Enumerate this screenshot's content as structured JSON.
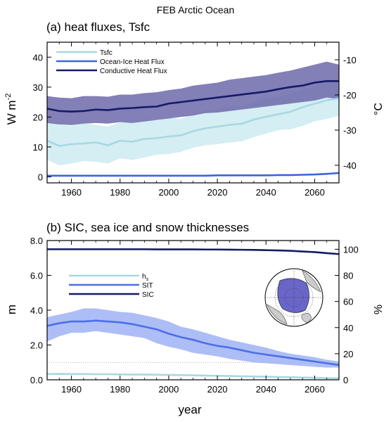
{
  "figure_title": "FEB Arctic Ocean",
  "colors": {
    "tsfc": "#a8d8e2",
    "tsfc_band": "#cdebf1",
    "ocean_ice": "#3c63e0",
    "conductive": "#141a66",
    "conductive_band": "#6d69aa",
    "hs": "#a8d8e2",
    "sit": "#4b6fe6",
    "sit_band": "#9fb2f4",
    "sic": "#141a66"
  },
  "chart_data": [
    {
      "type": "line",
      "panel_title": "(a) heat fluxes, Tsfc",
      "xlabel": "",
      "ylabel_left": "W m",
      "ylabel_left_sup": "-2",
      "ylabel_right": "°C",
      "xlim": [
        1950,
        2070
      ],
      "ylim_left": [
        -2,
        45
      ],
      "ylim_right": [
        -45,
        -5
      ],
      "x_ticks": [
        1960,
        1980,
        2000,
        2020,
        2040,
        2060
      ],
      "x_tick_labels": [
        "1960",
        "1980",
        "2000",
        "2020",
        "2040",
        "2060"
      ],
      "yleft_ticks": [
        0,
        10,
        20,
        30,
        40
      ],
      "yleft_tick_labels": [
        "0",
        "10",
        "20",
        "30",
        "40"
      ],
      "yright_ticks": [
        -40,
        -30,
        -20,
        -10
      ],
      "yright_tick_labels": [
        "-40",
        "-30",
        "-20",
        "-10"
      ],
      "legend": {
        "placement": "top-left",
        "entries": [
          "Tsfc",
          "Ocean-Ice Heat Flux",
          "Conductive Heat Flux"
        ]
      },
      "x": [
        1950,
        1955,
        1960,
        1965,
        1970,
        1975,
        1980,
        1985,
        1990,
        1995,
        2000,
        2005,
        2010,
        2015,
        2020,
        2025,
        2030,
        2035,
        2040,
        2045,
        2050,
        2055,
        2060,
        2065,
        2070
      ],
      "series": [
        {
          "name": "Tsfc",
          "axis": "right",
          "color_key": "tsfc",
          "band_key": "tsfc_band",
          "values": [
            -33.0,
            -34.5,
            -34.0,
            -33.8,
            -33.5,
            -34.3,
            -33.0,
            -33.3,
            -32.5,
            -32.3,
            -31.8,
            -31.5,
            -30.3,
            -29.5,
            -29.0,
            -28.5,
            -28.2,
            -27.0,
            -26.2,
            -25.5,
            -24.8,
            -23.5,
            -22.5,
            -21.5,
            -21.0
          ],
          "lower": [
            -38.5,
            -40.0,
            -39.5,
            -38.8,
            -39.0,
            -39.5,
            -38.0,
            -38.5,
            -37.8,
            -37.0,
            -36.8,
            -36.2,
            -35.0,
            -34.3,
            -34.0,
            -33.5,
            -33.2,
            -32.0,
            -31.0,
            -30.0,
            -29.8,
            -28.8,
            -27.5,
            -26.8,
            -26.0
          ],
          "upper": [
            -27.5,
            -28.5,
            -28.8,
            -28.0,
            -28.5,
            -29.0,
            -27.8,
            -27.5,
            -27.0,
            -27.3,
            -26.5,
            -26.8,
            -25.5,
            -24.5,
            -24.0,
            -23.5,
            -23.3,
            -22.2,
            -21.0,
            -20.5,
            -19.5,
            -18.5,
            -17.5,
            -16.3,
            -16.0
          ]
        },
        {
          "name": "Ocean-Ice Heat Flux",
          "axis": "left",
          "color_key": "ocean_ice",
          "band_key": "",
          "values": [
            0.4,
            0.4,
            0.4,
            0.4,
            0.4,
            0.4,
            0.4,
            0.4,
            0.4,
            0.4,
            0.4,
            0.4,
            0.4,
            0.4,
            0.5,
            0.5,
            0.5,
            0.5,
            0.5,
            0.6,
            0.6,
            0.7,
            0.8,
            1.0,
            1.3
          ],
          "lower": [],
          "upper": []
        },
        {
          "name": "Conductive Heat Flux",
          "axis": "left",
          "color_key": "conductive",
          "band_key": "conductive_band",
          "values": [
            22.8,
            22.0,
            21.8,
            22.0,
            22.5,
            22.3,
            22.8,
            23.0,
            23.3,
            23.5,
            24.5,
            25.0,
            25.5,
            26.0,
            26.5,
            27.0,
            27.5,
            28.0,
            28.5,
            29.3,
            30.0,
            30.5,
            31.5,
            32.0,
            32.0
          ],
          "lower": [
            18.0,
            17.5,
            17.3,
            17.8,
            18.0,
            17.8,
            18.3,
            18.0,
            18.5,
            19.0,
            19.5,
            20.0,
            20.5,
            21.3,
            21.5,
            22.0,
            22.5,
            23.0,
            23.5,
            24.0,
            24.5,
            25.0,
            25.5,
            26.5,
            26.0
          ],
          "upper": [
            27.0,
            26.5,
            26.3,
            27.0,
            27.0,
            26.8,
            27.5,
            27.5,
            28.0,
            28.3,
            29.0,
            29.5,
            30.5,
            31.0,
            31.5,
            32.5,
            33.0,
            33.5,
            34.0,
            34.8,
            35.5,
            36.5,
            37.5,
            38.5,
            37.5
          ]
        }
      ]
    },
    {
      "type": "line",
      "panel_title": "(b) SIC, sea ice and snow thicknesses",
      "xlabel": "year",
      "ylabel_left": "m",
      "ylabel_right": "%",
      "xlim": [
        1950,
        2070
      ],
      "ylim_left": [
        0,
        8
      ],
      "ylim_right": [
        0,
        106.67
      ],
      "x_ticks": [
        1960,
        1980,
        2000,
        2020,
        2040,
        2060
      ],
      "x_tick_labels": [
        "1960",
        "1980",
        "2000",
        "2020",
        "2040",
        "2060"
      ],
      "yleft_ticks": [
        0,
        2,
        4,
        6,
        8
      ],
      "yleft_tick_labels": [
        "0.0",
        "2.0",
        "4.0",
        "6.0",
        "8.0"
      ],
      "yright_ticks": [
        0,
        20,
        40,
        60,
        80,
        100
      ],
      "yright_tick_labels": [
        "0",
        "20",
        "40",
        "60",
        "80",
        "100"
      ],
      "reference_line": {
        "axis": "left",
        "value": 1.0
      },
      "legend": {
        "placement": "middle-left",
        "entries": [
          "h",
          "SIT",
          "SIC"
        ],
        "entry_subscripts": [
          "s",
          "",
          ""
        ]
      },
      "inset_map": {
        "placement": "right-center",
        "kind": "arctic polar projection"
      },
      "x": [
        1950,
        1955,
        1960,
        1965,
        1970,
        1975,
        1980,
        1985,
        1990,
        1995,
        2000,
        2005,
        2010,
        2015,
        2020,
        2025,
        2030,
        2035,
        2040,
        2045,
        2050,
        2055,
        2060,
        2065,
        2070
      ],
      "series": [
        {
          "name": "h_s",
          "axis": "left",
          "color_key": "hs",
          "band_key": "",
          "values": [
            0.33,
            0.34,
            0.33,
            0.33,
            0.32,
            0.32,
            0.31,
            0.3,
            0.3,
            0.29,
            0.28,
            0.27,
            0.26,
            0.24,
            0.23,
            0.22,
            0.2,
            0.19,
            0.18,
            0.16,
            0.15,
            0.13,
            0.12,
            0.1,
            0.09
          ],
          "lower": [],
          "upper": []
        },
        {
          "name": "SIT",
          "axis": "left",
          "color_key": "sit",
          "band_key": "sit_band",
          "values": [
            3.1,
            3.25,
            3.35,
            3.35,
            3.4,
            3.35,
            3.3,
            3.2,
            3.05,
            2.9,
            2.65,
            2.45,
            2.3,
            2.1,
            1.95,
            1.85,
            1.7,
            1.55,
            1.45,
            1.35,
            1.25,
            1.15,
            1.05,
            0.95,
            0.85
          ],
          "lower": [
            2.2,
            2.5,
            2.7,
            2.7,
            2.8,
            2.7,
            2.6,
            2.5,
            2.4,
            2.1,
            1.9,
            1.75,
            1.55,
            1.45,
            1.35,
            1.2,
            1.1,
            1.0,
            0.95,
            0.9,
            0.85,
            0.8,
            0.75,
            0.7,
            0.7
          ],
          "upper": [
            3.6,
            3.75,
            3.9,
            4.1,
            4.1,
            4.0,
            3.9,
            3.85,
            3.7,
            3.55,
            3.35,
            3.05,
            2.9,
            2.7,
            2.5,
            2.3,
            2.15,
            2.0,
            1.85,
            1.65,
            1.5,
            1.4,
            1.3,
            1.15,
            1.05
          ]
        },
        {
          "name": "SIC",
          "axis": "right",
          "color_key": "sic",
          "band_key": "",
          "values": [
            100,
            100,
            100,
            100,
            100,
            100,
            100,
            100,
            100,
            99.9,
            99.9,
            99.9,
            99.9,
            99.8,
            99.8,
            99.7,
            99.6,
            99.5,
            99.3,
            99.1,
            98.8,
            98.3,
            97.8,
            97.0,
            96.3
          ],
          "lower": [],
          "upper": []
        }
      ]
    }
  ]
}
